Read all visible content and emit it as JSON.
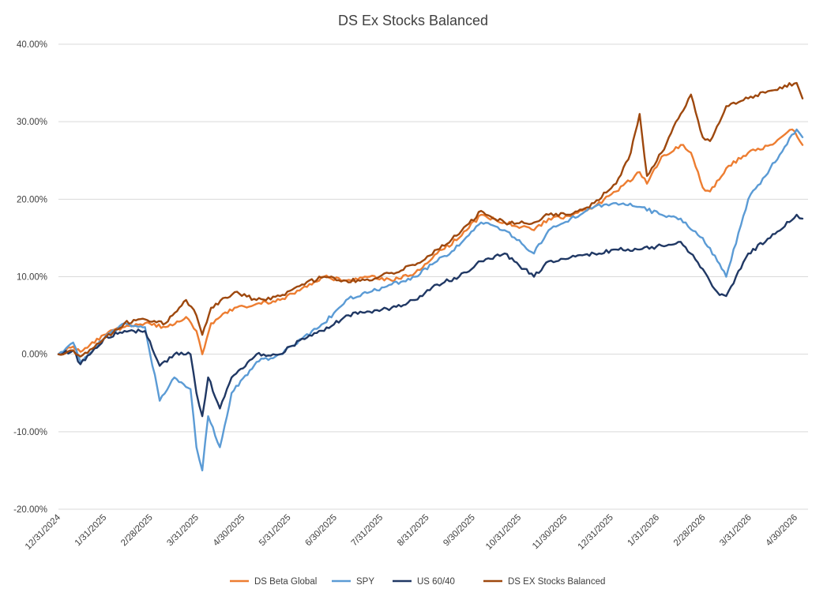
{
  "chart_data": {
    "type": "line",
    "title": "DS Ex Stocks Balanced",
    "xlabel": "",
    "ylabel": "",
    "grid": true,
    "legend_position": "bottom",
    "x_tick_labels": [
      "12/31/2024",
      "1/31/2025",
      "2/28/2025",
      "3/31/2025",
      "4/30/2025",
      "5/31/2025",
      "6/30/2025",
      "7/31/2025",
      "8/31/2025",
      "9/30/2025",
      "10/31/2025",
      "11/30/2025",
      "12/31/2025",
      "1/31/2026",
      "2/28/2026",
      "3/31/2026",
      "4/30/2026"
    ],
    "x_range": [
      "2024-12-31",
      "2026-05-22"
    ],
    "y_tick_labels": [
      "40.00%",
      "30.00%",
      "20.00%",
      "10.00%",
      "0.00%",
      "-10.00%",
      "-20.00%"
    ],
    "ylim": [
      -20,
      40
    ],
    "y_unit": "%",
    "series": [
      {
        "name": "DS Beta Global",
        "color": "#ed7d31",
        "points": [
          [
            "2024-12-31",
            0
          ],
          [
            "2025-01-10",
            1
          ],
          [
            "2025-01-15",
            0.3
          ],
          [
            "2025-01-31",
            2.5
          ],
          [
            "2025-02-14",
            3.5
          ],
          [
            "2025-02-28",
            4
          ],
          [
            "2025-03-14",
            3.5
          ],
          [
            "2025-03-28",
            4.8
          ],
          [
            "2025-04-04",
            3
          ],
          [
            "2025-04-08",
            0
          ],
          [
            "2025-04-14",
            4
          ],
          [
            "2025-04-30",
            6
          ],
          [
            "2025-05-15",
            6.5
          ],
          [
            "2025-05-31",
            7
          ],
          [
            "2025-06-15",
            8.5
          ],
          [
            "2025-06-30",
            10
          ],
          [
            "2025-07-15",
            9.5
          ],
          [
            "2025-07-31",
            10
          ],
          [
            "2025-08-15",
            9.5
          ],
          [
            "2025-08-31",
            10.5
          ],
          [
            "2025-09-15",
            13
          ],
          [
            "2025-09-30",
            15
          ],
          [
            "2025-10-15",
            18
          ],
          [
            "2025-10-31",
            17
          ],
          [
            "2025-11-20",
            16
          ],
          [
            "2025-11-30",
            17.5
          ],
          [
            "2025-12-15",
            17.8
          ],
          [
            "2025-12-31",
            19
          ],
          [
            "2026-01-15",
            21
          ],
          [
            "2026-01-31",
            23.5
          ],
          [
            "2026-02-05",
            22
          ],
          [
            "2026-02-15",
            25.5
          ],
          [
            "2026-02-28",
            27
          ],
          [
            "2026-03-07",
            26
          ],
          [
            "2026-03-15",
            21.5
          ],
          [
            "2026-03-20",
            21
          ],
          [
            "2026-03-31",
            24
          ],
          [
            "2026-04-15",
            26
          ],
          [
            "2026-04-30",
            27
          ],
          [
            "2026-05-15",
            29
          ],
          [
            "2026-05-22",
            27
          ]
        ]
      },
      {
        "name": "SPY",
        "color": "#5b9bd5",
        "points": [
          [
            "2024-12-31",
            0
          ],
          [
            "2025-01-10",
            1.5
          ],
          [
            "2025-01-15",
            -1
          ],
          [
            "2025-01-31",
            2
          ],
          [
            "2025-02-14",
            4
          ],
          [
            "2025-02-28",
            3.5
          ],
          [
            "2025-03-10",
            -6
          ],
          [
            "2025-03-20",
            -3
          ],
          [
            "2025-03-31",
            -4.5
          ],
          [
            "2025-04-04",
            -12
          ],
          [
            "2025-04-08",
            -15
          ],
          [
            "2025-04-12",
            -8
          ],
          [
            "2025-04-20",
            -12
          ],
          [
            "2025-04-28",
            -5
          ],
          [
            "2025-05-15",
            -1
          ],
          [
            "2025-05-31",
            0
          ],
          [
            "2025-06-15",
            2
          ],
          [
            "2025-06-30",
            4
          ],
          [
            "2025-07-15",
            7
          ],
          [
            "2025-07-31",
            8
          ],
          [
            "2025-08-15",
            9
          ],
          [
            "2025-08-31",
            10
          ],
          [
            "2025-09-15",
            12
          ],
          [
            "2025-09-30",
            14
          ],
          [
            "2025-10-15",
            17
          ],
          [
            "2025-10-31",
            16
          ],
          [
            "2025-11-20",
            13
          ],
          [
            "2025-11-30",
            16
          ],
          [
            "2025-12-15",
            17.5
          ],
          [
            "2025-12-31",
            19
          ],
          [
            "2026-01-15",
            19.5
          ],
          [
            "2026-01-31",
            19
          ],
          [
            "2026-02-15",
            18
          ],
          [
            "2026-02-28",
            17.5
          ],
          [
            "2026-03-15",
            15
          ],
          [
            "2026-03-25",
            12
          ],
          [
            "2026-03-31",
            10
          ],
          [
            "2026-04-15",
            20
          ],
          [
            "2026-04-30",
            24
          ],
          [
            "2026-05-18",
            29
          ],
          [
            "2026-05-22",
            28
          ]
        ]
      },
      {
        "name": "US 60/40",
        "color": "#203864",
        "points": [
          [
            "2024-12-31",
            0
          ],
          [
            "2025-01-10",
            0.5
          ],
          [
            "2025-01-15",
            -1.3
          ],
          [
            "2025-01-31",
            2
          ],
          [
            "2025-02-14",
            3
          ],
          [
            "2025-02-28",
            3
          ],
          [
            "2025-03-10",
            -1.5
          ],
          [
            "2025-03-20",
            0
          ],
          [
            "2025-03-31",
            0
          ],
          [
            "2025-04-04",
            -5
          ],
          [
            "2025-04-08",
            -8
          ],
          [
            "2025-04-12",
            -3
          ],
          [
            "2025-04-20",
            -7
          ],
          [
            "2025-04-28",
            -3
          ],
          [
            "2025-05-15",
            0
          ],
          [
            "2025-05-31",
            0
          ],
          [
            "2025-06-15",
            2
          ],
          [
            "2025-06-30",
            3
          ],
          [
            "2025-07-15",
            5
          ],
          [
            "2025-07-31",
            5.5
          ],
          [
            "2025-08-15",
            6
          ],
          [
            "2025-08-31",
            7
          ],
          [
            "2025-09-15",
            9
          ],
          [
            "2025-09-30",
            10
          ],
          [
            "2025-10-15",
            12
          ],
          [
            "2025-10-31",
            13
          ],
          [
            "2025-11-20",
            10
          ],
          [
            "2025-11-30",
            12
          ],
          [
            "2025-12-15",
            12.5
          ],
          [
            "2025-12-31",
            13
          ],
          [
            "2026-01-15",
            13.5
          ],
          [
            "2026-01-31",
            13.5
          ],
          [
            "2026-02-15",
            14
          ],
          [
            "2026-02-28",
            14.5
          ],
          [
            "2026-03-15",
            11
          ],
          [
            "2026-03-25",
            8
          ],
          [
            "2026-03-31",
            7.5
          ],
          [
            "2026-04-15",
            13
          ],
          [
            "2026-04-30",
            15
          ],
          [
            "2026-05-18",
            18
          ],
          [
            "2026-05-22",
            17.5
          ]
        ]
      },
      {
        "name": "DS EX Stocks Balanced",
        "color": "#9e480e",
        "points": [
          [
            "2024-12-31",
            0
          ],
          [
            "2025-01-10",
            0.5
          ],
          [
            "2025-01-15",
            -0.3
          ],
          [
            "2025-01-31",
            2
          ],
          [
            "2025-02-14",
            4
          ],
          [
            "2025-02-28",
            4.5
          ],
          [
            "2025-03-14",
            4
          ],
          [
            "2025-03-28",
            7
          ],
          [
            "2025-04-04",
            5
          ],
          [
            "2025-04-08",
            2.5
          ],
          [
            "2025-04-14",
            6
          ],
          [
            "2025-04-30",
            8
          ],
          [
            "2025-05-15",
            7
          ],
          [
            "2025-05-31",
            7.5
          ],
          [
            "2025-06-15",
            9
          ],
          [
            "2025-06-30",
            10
          ],
          [
            "2025-07-15",
            9.5
          ],
          [
            "2025-07-31",
            9.5
          ],
          [
            "2025-08-15",
            10.5
          ],
          [
            "2025-08-31",
            11.5
          ],
          [
            "2025-09-15",
            13.5
          ],
          [
            "2025-09-30",
            15.5
          ],
          [
            "2025-10-15",
            18.5
          ],
          [
            "2025-10-31",
            17
          ],
          [
            "2025-11-20",
            17
          ],
          [
            "2025-11-30",
            18
          ],
          [
            "2025-12-15",
            18
          ],
          [
            "2025-12-31",
            19.5
          ],
          [
            "2026-01-15",
            22
          ],
          [
            "2026-01-25",
            26
          ],
          [
            "2026-01-31",
            31
          ],
          [
            "2026-02-05",
            23
          ],
          [
            "2026-02-15",
            26
          ],
          [
            "2026-02-28",
            31
          ],
          [
            "2026-03-07",
            33.5
          ],
          [
            "2026-03-15",
            28
          ],
          [
            "2026-03-20",
            27.5
          ],
          [
            "2026-03-31",
            32
          ],
          [
            "2026-04-15",
            33
          ],
          [
            "2026-04-30",
            34
          ],
          [
            "2026-05-18",
            35
          ],
          [
            "2026-05-22",
            33
          ]
        ]
      }
    ]
  }
}
